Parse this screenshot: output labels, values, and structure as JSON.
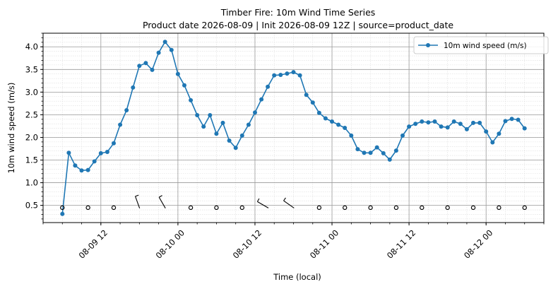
{
  "chart_data": {
    "type": "line",
    "title_line1": "Timber Fire: 10m Wind Time Series",
    "title_line2": "Product date 2026-08-09 | Init 2026-08-09 12Z | source=product_date",
    "xlabel": "Time (local)",
    "ylabel": "10m wind speed (m/s)",
    "x_start": "2026-08-09 06:00",
    "x_step_hours": 1,
    "xlim": [
      "2026-08-09 03:00",
      "2026-08-12 09:00"
    ],
    "ylim": [
      0.12,
      4.3
    ],
    "x_ticks": [
      {
        "date": "2026-08-09 12:00",
        "label": "08-09 12"
      },
      {
        "date": "2026-08-10 00:00",
        "label": "08-10 00"
      },
      {
        "date": "2026-08-10 12:00",
        "label": "08-10 12"
      },
      {
        "date": "2026-08-11 00:00",
        "label": "08-11 00"
      },
      {
        "date": "2026-08-11 12:00",
        "label": "08-11 12"
      },
      {
        "date": "2026-08-12 00:00",
        "label": "08-12 00"
      }
    ],
    "y_ticks": [
      0.5,
      1.0,
      1.5,
      2.0,
      2.5,
      3.0,
      3.5,
      4.0
    ],
    "y_tick_labels": [
      "0.5",
      "1.0",
      "1.5",
      "2.0",
      "2.5",
      "3.0",
      "3.5",
      "4.0"
    ],
    "grid": true,
    "legend_position": "top-right",
    "series": [
      {
        "name": "10m wind speed (m/s)",
        "color": "#1f77b4",
        "values": [
          0.31,
          1.66,
          1.38,
          1.27,
          1.28,
          1.47,
          1.65,
          1.68,
          1.87,
          2.28,
          2.6,
          3.1,
          3.58,
          3.64,
          3.49,
          3.87,
          4.11,
          3.93,
          3.4,
          3.15,
          2.82,
          2.49,
          2.24,
          2.49,
          2.08,
          2.32,
          1.93,
          1.77,
          2.04,
          2.28,
          2.55,
          2.84,
          3.12,
          3.37,
          3.38,
          3.41,
          3.44,
          3.37,
          2.94,
          2.77,
          2.54,
          2.42,
          2.35,
          2.28,
          2.21,
          2.04,
          1.74,
          1.66,
          1.66,
          1.78,
          1.65,
          1.51,
          1.71,
          2.04,
          2.24,
          2.3,
          2.35,
          2.33,
          2.35,
          2.24,
          2.22,
          2.35,
          2.3,
          2.18,
          2.32,
          2.32,
          2.13,
          1.89,
          2.08,
          2.36,
          2.41,
          2.39,
          2.2
        ]
      }
    ],
    "wind_barbs": {
      "y": 0.45,
      "markers": [
        {
          "date": "2026-08-09 06:00",
          "type": "calm"
        },
        {
          "date": "2026-08-09 10:00",
          "type": "calm"
        },
        {
          "date": "2026-08-09 14:00",
          "type": "calm"
        },
        {
          "date": "2026-08-09 18:00",
          "type": "barb",
          "dir_deg": 340
        },
        {
          "date": "2026-08-09 22:00",
          "type": "barb",
          "dir_deg": 330
        },
        {
          "date": "2026-08-10 02:00",
          "type": "calm"
        },
        {
          "date": "2026-08-10 06:00",
          "type": "calm"
        },
        {
          "date": "2026-08-10 10:00",
          "type": "calm"
        },
        {
          "date": "2026-08-10 14:00",
          "type": "barb",
          "dir_deg": 300
        },
        {
          "date": "2026-08-10 18:00",
          "type": "barb",
          "dir_deg": 305
        },
        {
          "date": "2026-08-10 22:00",
          "type": "calm"
        },
        {
          "date": "2026-08-11 02:00",
          "type": "calm"
        },
        {
          "date": "2026-08-11 06:00",
          "type": "calm"
        },
        {
          "date": "2026-08-11 10:00",
          "type": "calm"
        },
        {
          "date": "2026-08-11 14:00",
          "type": "calm"
        },
        {
          "date": "2026-08-11 18:00",
          "type": "calm"
        },
        {
          "date": "2026-08-11 22:00",
          "type": "calm"
        },
        {
          "date": "2026-08-12 02:00",
          "type": "calm"
        },
        {
          "date": "2026-08-12 06:00",
          "type": "calm"
        }
      ]
    }
  }
}
